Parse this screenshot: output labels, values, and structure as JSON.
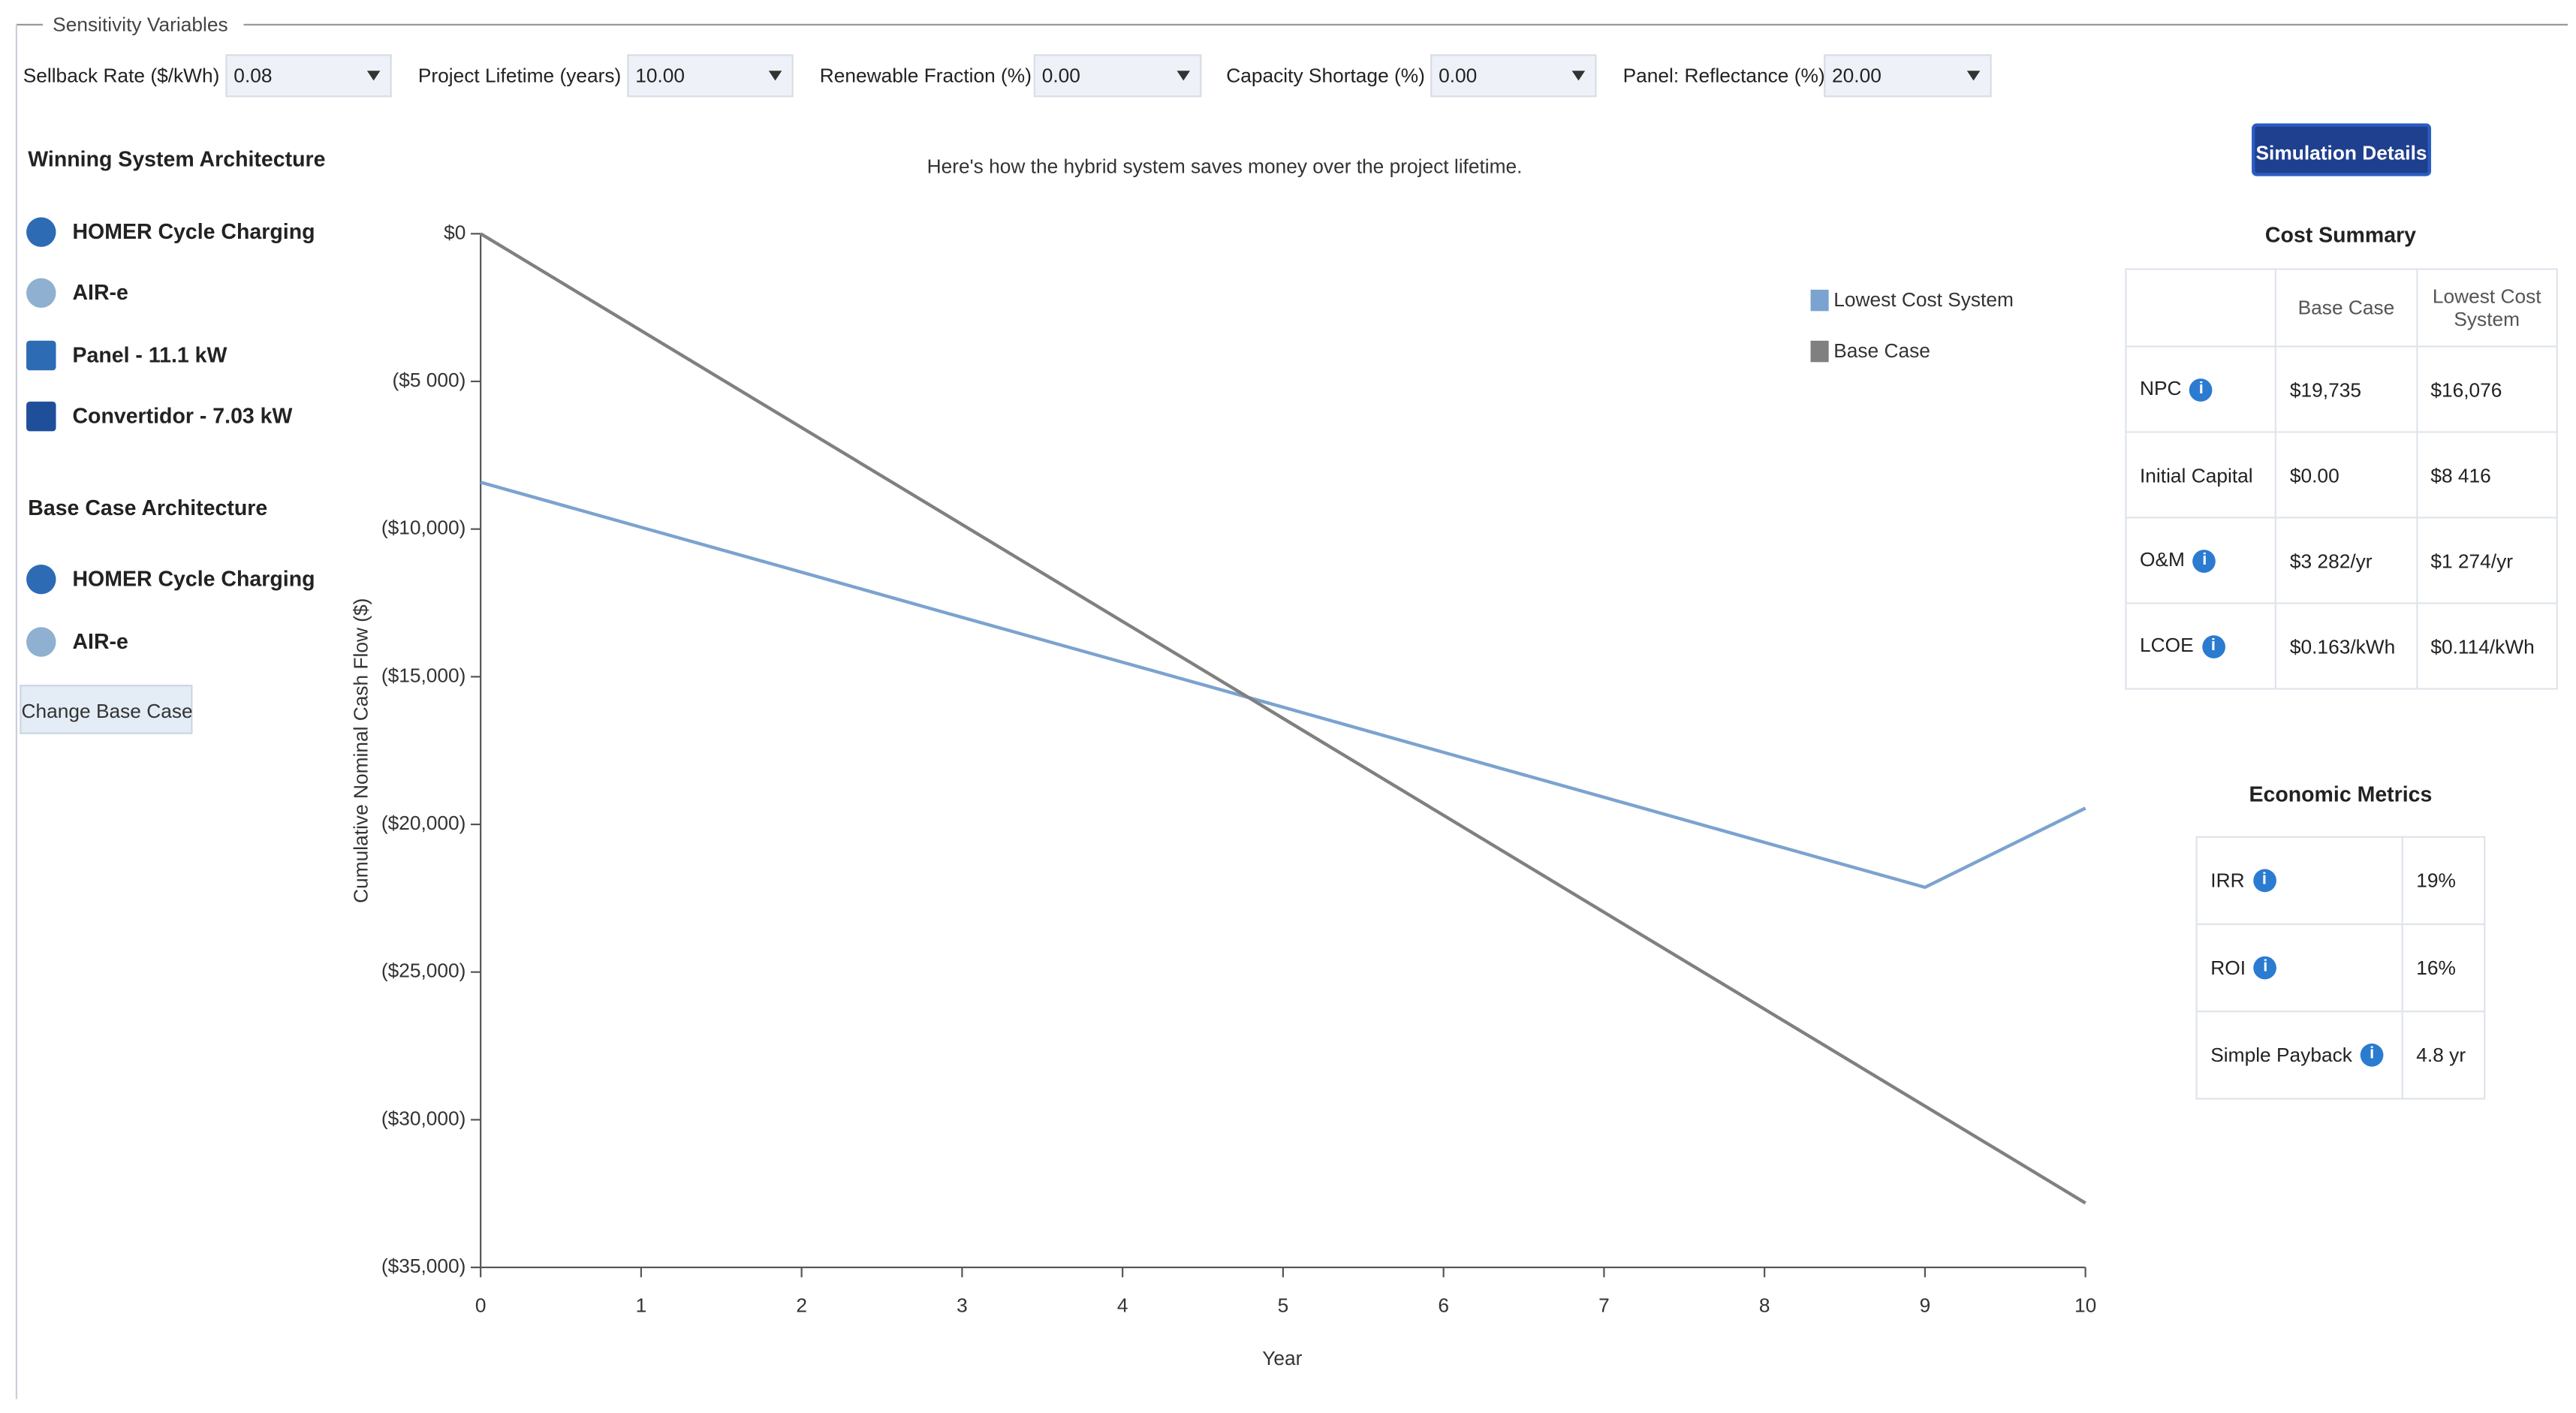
{
  "sensitivity": {
    "legend": "Sensitivity Variables",
    "fields": [
      {
        "label": "Sellback Rate ($/kWh)",
        "value": "0.08"
      },
      {
        "label": "Project Lifetime (years)",
        "value": "10.00"
      },
      {
        "label": "Renewable Fraction (%)",
        "value": "0.00"
      },
      {
        "label": "Capacity Shortage (%)",
        "value": "0.00"
      },
      {
        "label": "Panel: Reflectance (%)",
        "value": "20.00"
      }
    ]
  },
  "winning": {
    "title": "Winning System Architecture",
    "items": [
      "HOMER Cycle Charging",
      "AIR-e",
      "Panel - 11.1 kW",
      "Convertidor - 7.03 kW"
    ]
  },
  "base": {
    "title": "Base Case Architecture",
    "items": [
      "HOMER Cycle Charging",
      "AIR-e"
    ],
    "button": "Change Base Case"
  },
  "simulation_button": "Simulation Details",
  "cost_summary": {
    "title": "Cost Summary",
    "columns": [
      "Base Case",
      "Lowest Cost System"
    ],
    "rows": [
      [
        "NPC",
        "$19,735",
        "$16,076"
      ],
      [
        "Initial Capital",
        "$0.00",
        "$8 416"
      ],
      [
        "O&M",
        "$3 282/yr",
        "$1 274/yr"
      ],
      [
        "LCOE",
        "$0.163/kWh",
        "$0.114/kWh"
      ]
    ]
  },
  "economic_metrics": {
    "title": "Economic Metrics",
    "rows": [
      [
        "IRR",
        "19%"
      ],
      [
        "ROI",
        "16%"
      ],
      [
        "Simple Payback",
        "4.8 yr"
      ]
    ]
  },
  "chart_data": {
    "type": "line",
    "subtitle": "Here's how the hybrid system saves money over the project lifetime.",
    "xlabel": "Year",
    "ylabel": "Cumulative Nominal Cash Flow ($)",
    "x": [
      0,
      1,
      2,
      3,
      4,
      5,
      6,
      7,
      8,
      9,
      10
    ],
    "xlim": [
      0,
      10
    ],
    "xticks": [
      0,
      1,
      2,
      3,
      4,
      5,
      6,
      7,
      8,
      9,
      10
    ],
    "ylim": [
      -35000,
      0
    ],
    "yticks": [
      {
        "value": 0,
        "label": "$0"
      },
      {
        "value": -5000,
        "label": "($5 000)"
      },
      {
        "value": -10000,
        "label": "($10,000)"
      },
      {
        "value": -15000,
        "label": "($15,000)"
      },
      {
        "value": -20000,
        "label": "($20,000)"
      },
      {
        "value": -25000,
        "label": "($25,000)"
      },
      {
        "value": -30000,
        "label": "($30,000)"
      },
      {
        "value": -35000,
        "label": "($35,000)"
      }
    ],
    "legend": "top-right",
    "series": [
      {
        "name": "Lowest Cost System",
        "color": "#7ba3cf",
        "values": [
          -8416,
          -9940,
          -11460,
          -12990,
          -14510,
          -16030,
          -17560,
          -19080,
          -20610,
          -22130,
          -19450
        ]
      },
      {
        "name": "Base Case",
        "color": "#808080",
        "values": [
          0,
          -3282,
          -6564,
          -9846,
          -13128,
          -16410,
          -19692,
          -22974,
          -26256,
          -29538,
          -32820
        ]
      }
    ]
  }
}
